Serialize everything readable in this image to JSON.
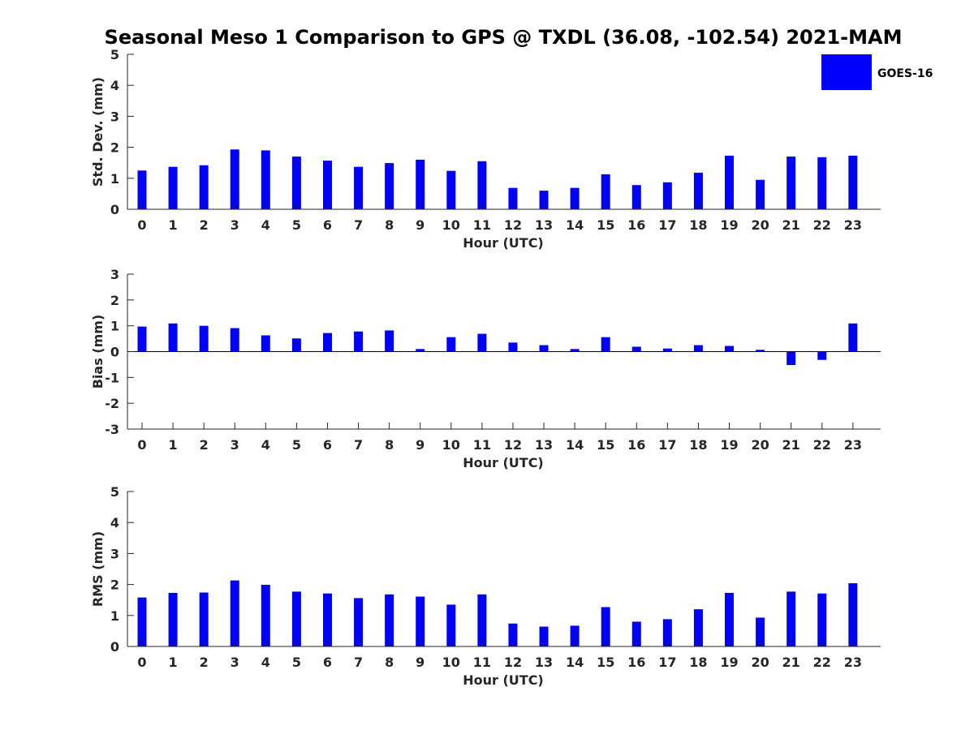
{
  "title": "Seasonal Meso 1 Comparison to GPS @ TXDL (36.08, -102.54) 2021-MAM",
  "legend": {
    "label": "GOES-16",
    "color": "#0000FF"
  },
  "bar_color": "#0000FF",
  "chart_data": [
    {
      "type": "bar",
      "id": "std",
      "categories": [
        "0",
        "1",
        "2",
        "3",
        "4",
        "5",
        "6",
        "7",
        "8",
        "9",
        "10",
        "11",
        "12",
        "13",
        "14",
        "15",
        "16",
        "17",
        "18",
        "19",
        "20",
        "21",
        "22",
        "23"
      ],
      "series": [
        {
          "name": "GOES-16",
          "values": [
            1.25,
            1.37,
            1.42,
            1.93,
            1.9,
            1.7,
            1.57,
            1.37,
            1.49,
            1.6,
            1.24,
            1.55,
            0.69,
            0.6,
            0.69,
            1.13,
            0.78,
            0.87,
            1.18,
            1.73,
            0.95,
            1.7,
            1.68,
            1.73
          ]
        }
      ],
      "xlabel": "Hour (UTC)",
      "ylabel": "Std. Dev. (mm)",
      "ylim": [
        0,
        5
      ],
      "yticks": [
        "0",
        "1",
        "2",
        "3",
        "4",
        "5"
      ],
      "grid": false
    },
    {
      "type": "bar",
      "id": "bias",
      "categories": [
        "0",
        "1",
        "2",
        "3",
        "4",
        "5",
        "6",
        "7",
        "8",
        "9",
        "10",
        "11",
        "12",
        "13",
        "14",
        "15",
        "16",
        "17",
        "18",
        "19",
        "20",
        "21",
        "22",
        "23"
      ],
      "series": [
        {
          "name": "GOES-16",
          "values": [
            0.97,
            1.09,
            1.0,
            0.91,
            0.63,
            0.51,
            0.72,
            0.78,
            0.82,
            0.1,
            0.56,
            0.69,
            0.35,
            0.25,
            0.1,
            0.56,
            0.19,
            0.12,
            0.25,
            0.22,
            0.07,
            -0.52,
            -0.32,
            1.09
          ]
        }
      ],
      "xlabel": "Hour (UTC)",
      "ylabel": "Bias (mm)",
      "ylim": [
        -3,
        3
      ],
      "yticks": [
        "-3",
        "-2",
        "-1",
        "0",
        "1",
        "2",
        "3"
      ],
      "grid": false
    },
    {
      "type": "bar",
      "id": "rms",
      "categories": [
        "0",
        "1",
        "2",
        "3",
        "4",
        "5",
        "6",
        "7",
        "8",
        "9",
        "10",
        "11",
        "12",
        "13",
        "14",
        "15",
        "16",
        "17",
        "18",
        "19",
        "20",
        "21",
        "22",
        "23"
      ],
      "series": [
        {
          "name": "GOES-16",
          "values": [
            1.58,
            1.73,
            1.74,
            2.13,
            1.99,
            1.77,
            1.71,
            1.56,
            1.68,
            1.61,
            1.35,
            1.68,
            0.74,
            0.64,
            0.67,
            1.27,
            0.8,
            0.88,
            1.2,
            1.73,
            0.93,
            1.77,
            1.71,
            2.04
          ]
        }
      ],
      "xlabel": "Hour (UTC)",
      "ylabel": "RMS (mm)",
      "ylim": [
        0,
        5
      ],
      "yticks": [
        "0",
        "1",
        "2",
        "3",
        "4",
        "5"
      ],
      "grid": false
    }
  ]
}
